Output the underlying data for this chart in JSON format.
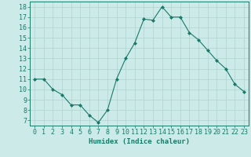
{
  "x": [
    0,
    1,
    2,
    3,
    4,
    5,
    6,
    7,
    8,
    9,
    10,
    11,
    12,
    13,
    14,
    15,
    16,
    17,
    18,
    19,
    20,
    21,
    22,
    23
  ],
  "y": [
    11.0,
    11.0,
    10.0,
    9.5,
    8.5,
    8.5,
    7.5,
    6.8,
    8.0,
    11.0,
    13.0,
    14.5,
    16.8,
    16.7,
    18.0,
    17.0,
    17.0,
    15.5,
    14.8,
    13.8,
    12.8,
    12.0,
    10.5,
    9.8
  ],
  "line_color": "#1a7a6a",
  "marker": "D",
  "marker_size": 2,
  "bg_color": "#cceae7",
  "grid_color": "#aed4d0",
  "xlabel": "Humidex (Indice chaleur)",
  "xlim": [
    -0.5,
    23.5
  ],
  "ylim": [
    6.5,
    18.5
  ],
  "yticks": [
    7,
    8,
    9,
    10,
    11,
    12,
    13,
    14,
    15,
    16,
    17,
    18
  ],
  "xticks": [
    0,
    1,
    2,
    3,
    4,
    5,
    6,
    7,
    8,
    9,
    10,
    11,
    12,
    13,
    14,
    15,
    16,
    17,
    18,
    19,
    20,
    21,
    22,
    23
  ],
  "label_fontsize": 6.5,
  "tick_fontsize": 6
}
